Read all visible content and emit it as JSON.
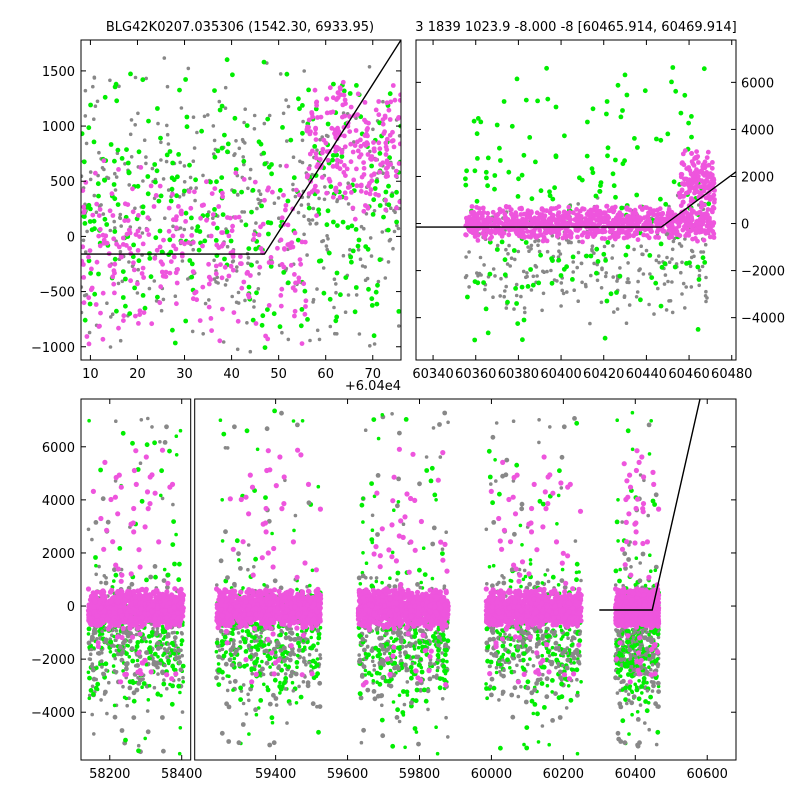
{
  "colors": {
    "grey": "#888888",
    "green": "#00ee00",
    "magenta": "#ee55dd",
    "model": "#000000"
  },
  "chart_data": [
    {
      "type": "scatter",
      "title": "BLG42K0207.035306 (1542.30, 6933.95)",
      "xlim": [
        8,
        76
      ],
      "ylim": [
        -1120,
        1780
      ],
      "xticks": [
        10,
        20,
        30,
        40,
        50,
        60,
        70
      ],
      "xticklabels": [
        "10",
        "20",
        "30",
        "40",
        "50",
        "60",
        "70"
      ],
      "yticks": [
        -1000,
        -500,
        0,
        500,
        1000,
        1500
      ],
      "yticklabels": [
        "−1000",
        "−500",
        "0",
        "500",
        "1000",
        "1500"
      ],
      "xoffset_label": "+6.04e4",
      "model": {
        "x": [
          8,
          47,
          76
        ],
        "y": [
          -160,
          -160,
          1780
        ]
      },
      "clusters": [
        {
          "color": "grey",
          "count": 420,
          "x": [
            8,
            76
          ],
          "y": [
            -1100,
            1650
          ],
          "seed": 11
        },
        {
          "color": "green",
          "count": 330,
          "x": [
            8,
            76
          ],
          "y": [
            -1100,
            1700
          ],
          "seed": 12
        },
        {
          "color": "magenta",
          "count": 280,
          "x": [
            8,
            56
          ],
          "y": [
            -1100,
            800
          ],
          "seed": 13
        },
        {
          "color": "magenta",
          "count": 230,
          "x": [
            56,
            76
          ],
          "y": [
            100,
            1500
          ],
          "seed": 14
        }
      ]
    },
    {
      "type": "scatter",
      "title": "3 1839 1023.9 -8.000 -8 [60465.914, 60469.914]",
      "xlim": [
        60332,
        60482
      ],
      "ylim": [
        -5800,
        7800
      ],
      "xticks": [
        60340,
        60360,
        60380,
        60400,
        60420,
        60440,
        60460,
        60480
      ],
      "xticklabels": [
        "60340",
        "60360",
        "60380",
        "60400",
        "60420",
        "60440",
        "60460",
        "60480"
      ],
      "yticks": [
        -4000,
        -2000,
        0,
        2000,
        4000,
        6000
      ],
      "yticklabels": [
        "−4000",
        "−2000",
        "0",
        "2000",
        "4000",
        "6000"
      ],
      "model": {
        "x": [
          60332,
          60447,
          60482
        ],
        "y": [
          -150,
          -150,
          2200
        ]
      },
      "clusters": [
        {
          "color": "grey",
          "count": 260,
          "x": [
            60355,
            60470
          ],
          "y": [
            -4500,
            1300
          ],
          "seed": 21
        },
        {
          "color": "green",
          "count": 200,
          "x": [
            60355,
            60470
          ],
          "y": [
            -5500,
            7500
          ],
          "seed": 22
        },
        {
          "color": "magenta",
          "count": 900,
          "x": [
            60355,
            60472
          ],
          "y": [
            -800,
            800
          ],
          "seed": 23
        },
        {
          "color": "magenta",
          "count": 160,
          "x": [
            60455,
            60472
          ],
          "y": [
            200,
            3200
          ],
          "seed": 24
        }
      ]
    },
    {
      "type": "scatter",
      "title": "",
      "xlim": [
        58120,
        60680
      ],
      "ylim": [
        -5800,
        7800
      ],
      "break": {
        "x1": 58425,
        "x2": 59175
      },
      "xticks": [
        58200,
        58400,
        59400,
        59600,
        59800,
        60000,
        60200,
        60400,
        60600
      ],
      "xticklabels": [
        "58200",
        "58400",
        "59400",
        "59600",
        "59800",
        "60000",
        "60200",
        "60400",
        "60600"
      ],
      "yticks": [
        -4000,
        -2000,
        0,
        2000,
        4000,
        6000
      ],
      "yticklabels": [
        "−4000",
        "−2000",
        "0",
        "2000",
        "4000",
        "6000"
      ],
      "model": {
        "x": [
          60300,
          60447,
          60580
        ],
        "y": [
          -150,
          -150,
          7800
        ]
      },
      "seasons": [
        {
          "x": [
            58140,
            58405
          ],
          "seed": 31
        },
        {
          "x": [
            59235,
            59525
          ],
          "seed": 32
        },
        {
          "x": [
            59630,
            59880
          ],
          "seed": 33
        },
        {
          "x": [
            59985,
            60250
          ],
          "seed": 34
        },
        {
          "x": [
            60345,
            60465
          ],
          "seed": 35
        }
      ]
    }
  ]
}
